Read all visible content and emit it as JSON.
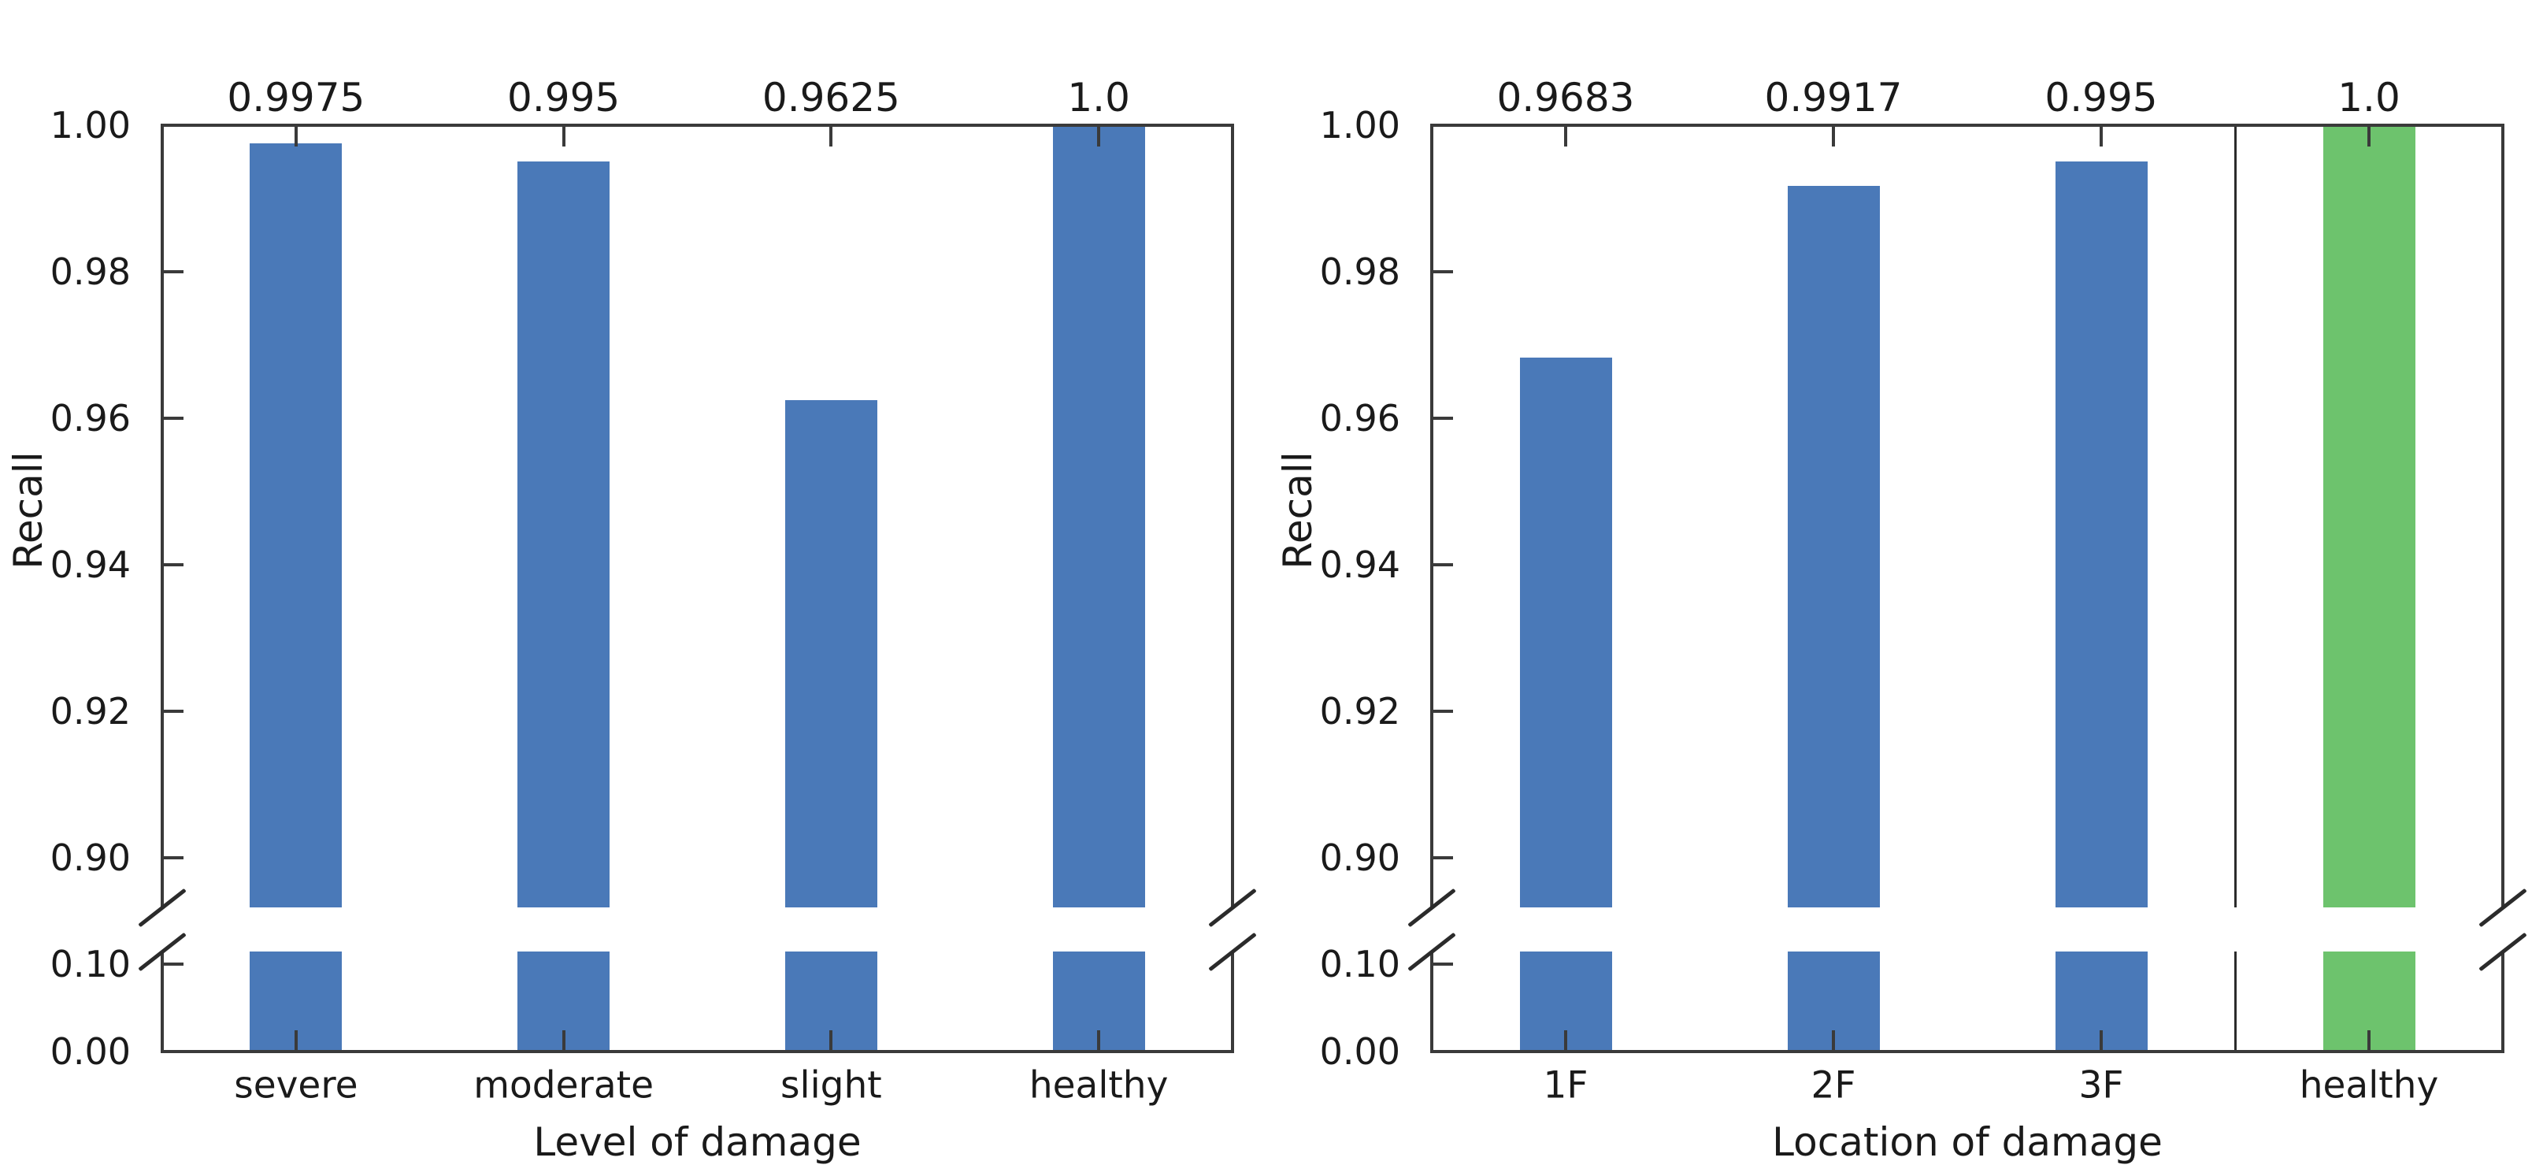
{
  "colors": {
    "bar_primary": "#4a79b8",
    "bar_highlight": "#6dc36d",
    "axis": "#3a3a3a",
    "text": "#1a1a1a",
    "background": "#ffffff"
  },
  "chart_data": [
    {
      "type": "bar",
      "title": "",
      "categories": [
        "severe",
        "moderate",
        "slight",
        "healthy"
      ],
      "values": [
        0.9975,
        0.995,
        0.9625,
        1.0
      ],
      "bar_value_labels": [
        "0.9975",
        "0.995",
        "0.9625",
        "1.0"
      ],
      "bar_color_keys": [
        "bar_primary",
        "bar_primary",
        "bar_primary",
        "bar_primary"
      ],
      "xlabel": "Level of damage",
      "ylabel": "Recall",
      "y_axis": {
        "broken": true,
        "upper_tick_labels": [
          "1.00",
          "0.98",
          "0.96",
          "0.94",
          "0.92",
          "0.90"
        ],
        "lower_tick_labels": [
          "0.10",
          "0.00"
        ],
        "upper_range": [
          0.8932,
          1.0
        ],
        "lower_range": [
          0.0,
          0.1144
        ]
      },
      "separator_after_category": null,
      "grid": "off",
      "legend": "none"
    },
    {
      "type": "bar",
      "title": "",
      "categories": [
        "1F",
        "2F",
        "3F",
        "healthy"
      ],
      "values": [
        0.9683,
        0.9917,
        0.995,
        1.0
      ],
      "bar_value_labels": [
        "0.9683",
        "0.9917",
        "0.995",
        "1.0"
      ],
      "bar_color_keys": [
        "bar_primary",
        "bar_primary",
        "bar_primary",
        "bar_highlight"
      ],
      "xlabel": "Location of damage",
      "ylabel": "Recall",
      "y_axis": {
        "broken": true,
        "upper_tick_labels": [
          "1.00",
          "0.98",
          "0.96",
          "0.94",
          "0.92",
          "0.90"
        ],
        "lower_tick_labels": [
          "0.10",
          "0.00"
        ],
        "upper_range": [
          0.8932,
          1.0
        ],
        "lower_range": [
          0.0,
          0.1144
        ]
      },
      "separator_after_category": "3F",
      "grid": "off",
      "legend": "none"
    }
  ]
}
